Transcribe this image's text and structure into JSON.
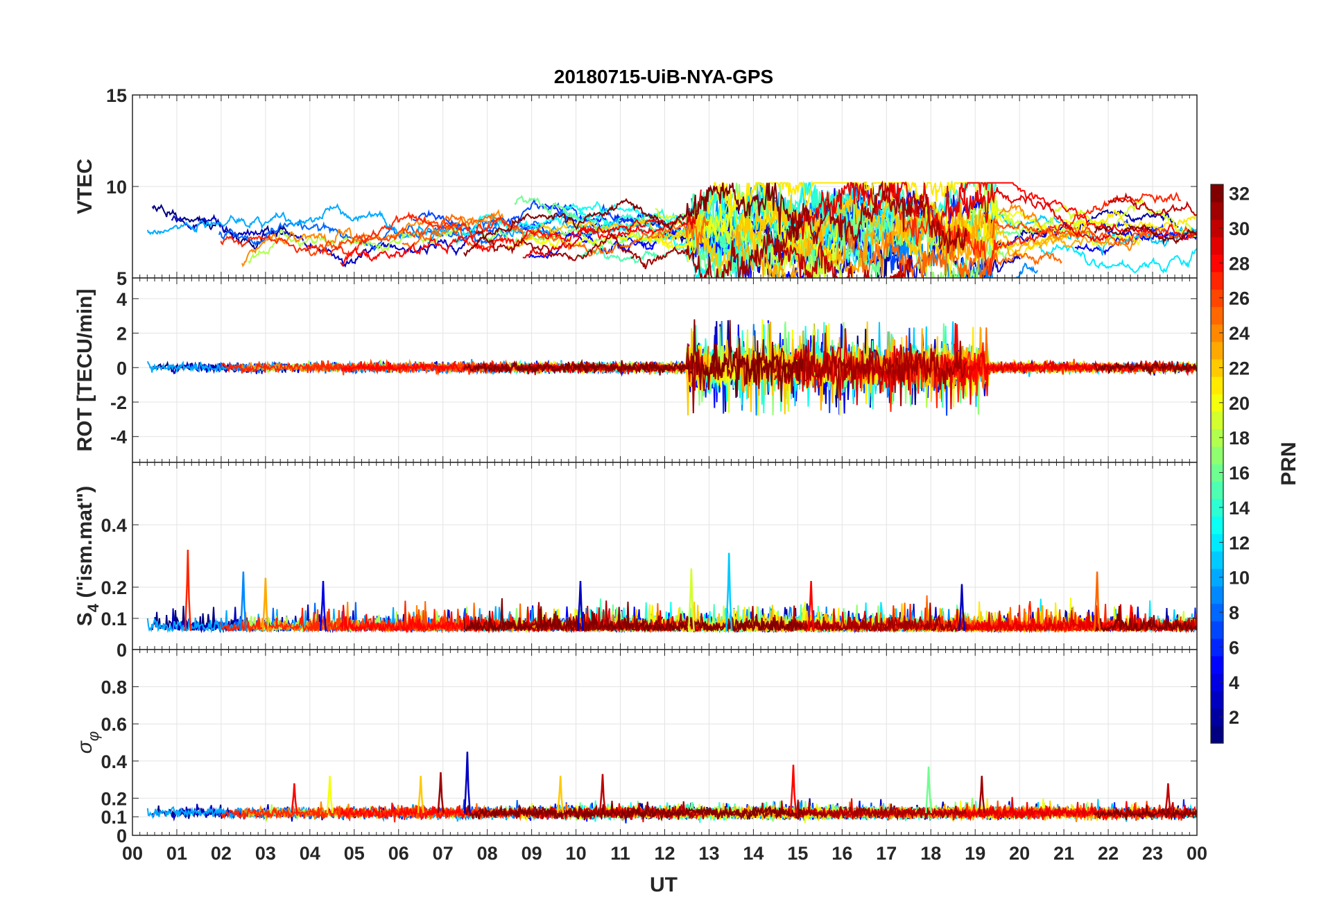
{
  "chart_data": {
    "type": "line",
    "title": "20180715-UiB-NYA-GPS",
    "xlabel": "UT",
    "x_unit": "hours",
    "xlim": [
      0,
      24
    ],
    "x_ticks": [
      0,
      1,
      2,
      3,
      4,
      5,
      6,
      7,
      8,
      9,
      10,
      11,
      12,
      13,
      14,
      15,
      16,
      17,
      18,
      19,
      20,
      21,
      22,
      23,
      24
    ],
    "x_tick_labels": [
      "00",
      "01",
      "02",
      "03",
      "04",
      "05",
      "06",
      "07",
      "08",
      "09",
      "10",
      "11",
      "12",
      "13",
      "14",
      "15",
      "16",
      "17",
      "18",
      "19",
      "20",
      "21",
      "22",
      "23",
      "00"
    ],
    "grid": true,
    "colorbar": {
      "label": "PRN",
      "range": [
        1,
        32
      ],
      "ticks": [
        2,
        4,
        6,
        8,
        10,
        12,
        14,
        16,
        18,
        20,
        22,
        24,
        26,
        28,
        30,
        32
      ],
      "colormap": "jet",
      "placement": "right"
    },
    "panels": [
      {
        "id": "vtec",
        "ylabel": "VTEC",
        "ylim": [
          5,
          15
        ],
        "yticks": [
          5,
          10,
          15
        ],
        "ytick_labels": [
          "5",
          "10",
          "15"
        ],
        "series_profile": {
          "baseline": 7.5,
          "amplitude": 1.8,
          "min": 5.0,
          "max": 10.2
        },
        "disturbed_intervals_ut": [
          [
            12.5,
            19.5
          ]
        ]
      },
      {
        "id": "rot",
        "ylabel": "ROT [TECU/min]",
        "ylim": [
          -5.5,
          5.2
        ],
        "yticks": [
          -4,
          -2,
          0,
          2,
          4
        ],
        "ytick_labels": [
          "-4",
          "-2",
          "0",
          "2",
          "4"
        ],
        "series_profile": {
          "baseline": 0,
          "peak_max": 3.2,
          "peak_min": -3.0
        },
        "disturbed_intervals_ut": [
          [
            12.5,
            19.3
          ]
        ]
      },
      {
        "id": "s4",
        "ylabel_main": "S",
        "ylabel_sub": "4",
        "ylabel_rest": " (\"ism.mat\")",
        "ylim": [
          0,
          0.6
        ],
        "yticks": [
          0,
          0.1,
          0.2,
          0.4
        ],
        "ytick_labels": [
          "0",
          "0.1",
          "0.2",
          "0.4"
        ],
        "series_profile": {
          "baseline": 0.06,
          "peak_max": 0.32
        },
        "peaks": [
          {
            "ut": 1.25,
            "value": 0.32,
            "prn": 27
          },
          {
            "ut": 2.5,
            "value": 0.25,
            "prn": 9
          },
          {
            "ut": 3.0,
            "value": 0.23,
            "prn": 23
          },
          {
            "ut": 4.3,
            "value": 0.22,
            "prn": 4
          },
          {
            "ut": 10.1,
            "value": 0.22,
            "prn": 3
          },
          {
            "ut": 12.6,
            "value": 0.26,
            "prn": 19
          },
          {
            "ut": 13.45,
            "value": 0.31,
            "prn": 11
          },
          {
            "ut": 15.3,
            "value": 0.22,
            "prn": 28
          },
          {
            "ut": 18.7,
            "value": 0.21,
            "prn": 3
          },
          {
            "ut": 21.75,
            "value": 0.25,
            "prn": 25
          }
        ]
      },
      {
        "id": "sigma_phi",
        "ylabel_main": "σ",
        "ylabel_sub": "φ",
        "ylim": [
          0,
          1.0
        ],
        "yticks": [
          0,
          0.1,
          0.2,
          0.4,
          0.6,
          0.8
        ],
        "ytick_labels": [
          "0",
          "0.1",
          "0.2",
          "0.4",
          "0.6",
          "0.8"
        ],
        "series_profile": {
          "baseline": 0.12,
          "peak_max": 0.45
        },
        "peaks": [
          {
            "ut": 3.65,
            "value": 0.28,
            "prn": 28
          },
          {
            "ut": 4.45,
            "value": 0.32,
            "prn": 20
          },
          {
            "ut": 6.5,
            "value": 0.32,
            "prn": 22
          },
          {
            "ut": 6.95,
            "value": 0.34,
            "prn": 31
          },
          {
            "ut": 7.55,
            "value": 0.45,
            "prn": 3
          },
          {
            "ut": 9.65,
            "value": 0.32,
            "prn": 22
          },
          {
            "ut": 10.6,
            "value": 0.33,
            "prn": 30
          },
          {
            "ut": 14.9,
            "value": 0.38,
            "prn": 28
          },
          {
            "ut": 17.95,
            "value": 0.37,
            "prn": 16
          },
          {
            "ut": 19.15,
            "value": 0.32,
            "prn": 31
          },
          {
            "ut": 23.35,
            "value": 0.28,
            "prn": 30
          }
        ]
      }
    ]
  }
}
